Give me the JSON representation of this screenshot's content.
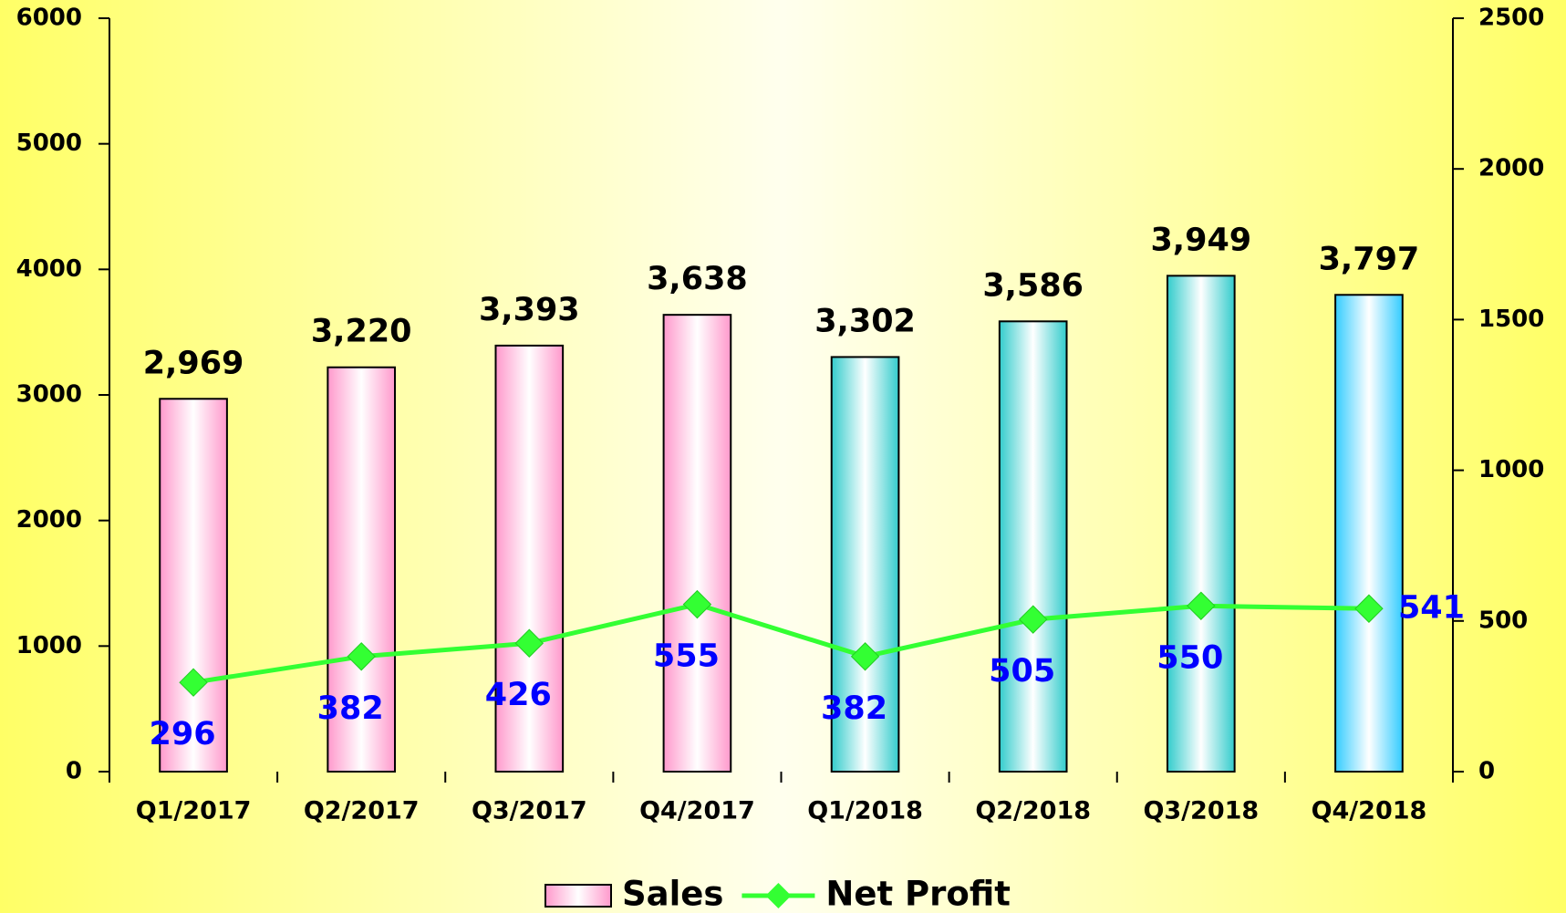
{
  "chart_data": {
    "type": "bar-line",
    "categories": [
      "Q1/2017",
      "Q2/2017",
      "Q3/2017",
      "Q4/2017",
      "Q1/2018",
      "Q2/2018",
      "Q3/2018",
      "Q4/2018"
    ],
    "series": [
      {
        "name": "Sales",
        "type": "bar",
        "color": "#ff99cc",
        "colors": [
          "#ff99cc",
          "#ff99cc",
          "#ff99cc",
          "#ff99cc",
          "#33cccc",
          "#33cccc",
          "#33cccc",
          "#33ccff"
        ],
        "values": [
          2969,
          3220,
          3393,
          3638,
          3302,
          3586,
          3949,
          3797
        ],
        "value_labels": [
          "2,969",
          "3,220",
          "3,393",
          "3,638",
          "3,302",
          "3,586",
          "3,949",
          "3,797"
        ]
      },
      {
        "name": "Net Profit",
        "type": "line",
        "axis": "y2",
        "color": "#33ff33",
        "label_color": "#0000ff",
        "values": [
          296,
          382,
          426,
          555,
          382,
          505,
          550,
          541
        ]
      }
    ],
    "ylim": [
      0,
      6000
    ],
    "yticks": [
      0,
      1000,
      2000,
      3000,
      4000,
      5000,
      6000
    ],
    "y2lim": [
      0,
      2500
    ],
    "y2ticks": [
      0,
      500,
      1000,
      1500,
      2000,
      2500
    ],
    "legend": "bottom"
  }
}
